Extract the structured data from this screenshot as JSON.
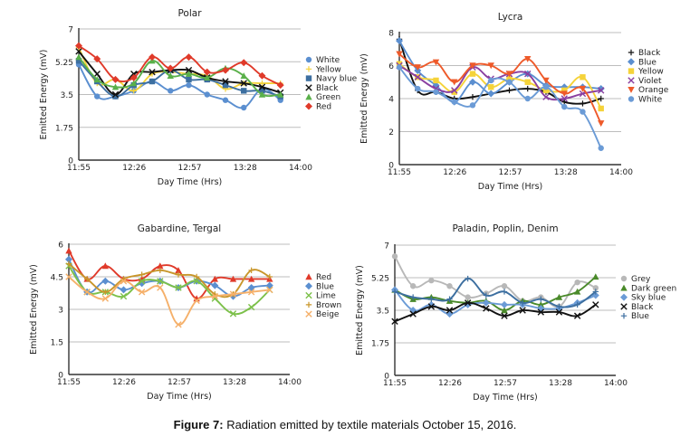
{
  "caption": {
    "label": "Figure 7:",
    "text": " Radiation emitted by textile materials October 15, 2016."
  },
  "chart_data": [
    {
      "type": "line",
      "title": "Polar",
      "xlabel": "Day Time (Hrs)",
      "ylabel": "Emitted Energy (mV)",
      "ylim": [
        0,
        7
      ],
      "yticks": [
        "0",
        "1.75",
        "3.5",
        "5.25",
        "7"
      ],
      "ytick_values": [
        0,
        1.75,
        3.5,
        5.25,
        7
      ],
      "xticks": [
        "11:55",
        "12:26",
        "12:57",
        "13:28",
        "14:00"
      ],
      "grid": true,
      "legend": "right",
      "x": [
        0,
        1,
        2,
        3,
        4,
        5,
        6,
        7,
        8,
        9,
        10,
        11
      ],
      "series": [
        {
          "name": "White",
          "color": "#5b8fd0",
          "marker": "circle",
          "values": [
            5.1,
            3.4,
            3.4,
            3.7,
            4.2,
            3.7,
            4.0,
            3.5,
            3.2,
            2.8,
            3.8,
            3.2
          ]
        },
        {
          "name": "Yellow",
          "color": "#f5d33a",
          "marker": "plus",
          "values": [
            6.0,
            4.1,
            4.3,
            3.7,
            4.6,
            4.7,
            4.6,
            4.5,
            3.8,
            4.1,
            4.1,
            4.1
          ]
        },
        {
          "name": "Navy blue",
          "color": "#3d6fa0",
          "marker": "square",
          "values": [
            5.3,
            4.2,
            3.4,
            4.0,
            4.2,
            4.8,
            4.3,
            4.3,
            4.0,
            3.7,
            3.7,
            3.4
          ]
        },
        {
          "name": "Black",
          "color": "#111111",
          "marker": "x",
          "values": [
            5.8,
            4.6,
            3.5,
            4.6,
            4.7,
            4.8,
            4.8,
            4.4,
            4.2,
            4.1,
            3.9,
            3.6
          ]
        },
        {
          "name": "Green",
          "color": "#5ab04a",
          "marker": "triangle",
          "values": [
            5.5,
            4.3,
            3.9,
            4.1,
            5.3,
            4.5,
            4.6,
            4.4,
            4.9,
            4.5,
            3.5,
            3.5
          ]
        },
        {
          "name": "Red",
          "color": "#e03a2a",
          "marker": "diamond",
          "values": [
            6.1,
            5.4,
            4.3,
            4.4,
            5.5,
            4.9,
            5.5,
            4.7,
            4.8,
            5.2,
            4.5,
            4.0
          ]
        }
      ]
    },
    {
      "type": "line",
      "title": "Lycra",
      "xlabel": "Day Time (Hrs)",
      "ylabel": "Emitted Energy (mV)",
      "ylim": [
        0,
        8
      ],
      "yticks": [
        "0",
        "2",
        "4",
        "6",
        "8"
      ],
      "ytick_values": [
        0,
        2,
        4,
        6,
        8
      ],
      "xticks": [
        "11:55",
        "12:26",
        "12:57",
        "13:28",
        "14:00"
      ],
      "grid": true,
      "legend": "right",
      "x": [
        0,
        1,
        2,
        3,
        4,
        5,
        6,
        7,
        8,
        9,
        10,
        11
      ],
      "series": [
        {
          "name": "Black",
          "color": "#111111",
          "marker": "plus",
          "values": [
            7.6,
            4.5,
            4.4,
            4.0,
            4.1,
            4.3,
            4.5,
            4.6,
            4.4,
            3.8,
            3.7,
            4.0
          ]
        },
        {
          "name": "Blue",
          "color": "#5b8fd0",
          "marker": "diamond",
          "values": [
            7.5,
            5.7,
            4.8,
            3.8,
            5.0,
            4.3,
            5.0,
            5.5,
            4.8,
            4.7,
            4.7,
            4.6
          ]
        },
        {
          "name": "Yellow",
          "color": "#f5d33a",
          "marker": "square",
          "values": [
            6.1,
            5.3,
            5.1,
            4.4,
            5.5,
            4.7,
            5.2,
            5.0,
            4.5,
            4.5,
            5.3,
            3.4
          ]
        },
        {
          "name": "Violet",
          "color": "#8a3fa0",
          "marker": "x",
          "values": [
            6.0,
            5.3,
            4.6,
            4.5,
            5.9,
            5.2,
            5.5,
            5.5,
            4.1,
            4.0,
            4.3,
            4.5
          ]
        },
        {
          "name": "Orange",
          "color": "#ee5a2a",
          "marker": "triangle-down",
          "values": [
            6.7,
            5.9,
            6.2,
            5.0,
            6.0,
            6.0,
            5.5,
            6.4,
            5.1,
            4.3,
            4.6,
            2.5
          ]
        },
        {
          "name": "White",
          "color": "#6b9bd6",
          "marker": "circle",
          "values": [
            5.9,
            4.6,
            4.4,
            3.8,
            3.6,
            5.1,
            5.0,
            4.0,
            4.7,
            3.5,
            3.2,
            1.0
          ]
        }
      ]
    },
    {
      "type": "line",
      "title": "Gabardine, Tergal",
      "xlabel": "Day Time (Hrs)",
      "ylabel": "Emitted Energy (mV)",
      "ylim": [
        0,
        6
      ],
      "yticks": [
        "0",
        "1.5",
        "3",
        "4.5",
        "6"
      ],
      "ytick_values": [
        0,
        1.5,
        3,
        4.5,
        6
      ],
      "xticks": [
        "11:55",
        "12:26",
        "12:57",
        "13:28",
        "14:00"
      ],
      "grid": true,
      "legend": "right",
      "x": [
        0,
        1,
        2,
        3,
        4,
        5,
        6,
        7,
        8,
        9,
        10,
        11
      ],
      "series": [
        {
          "name": "Red",
          "color": "#e03a2a",
          "marker": "triangle",
          "values": [
            5.7,
            4.4,
            5.0,
            4.4,
            4.4,
            5.0,
            4.8,
            3.5,
            4.4,
            4.4,
            4.4,
            4.4
          ]
        },
        {
          "name": "Blue",
          "color": "#5b8fd0",
          "marker": "diamond",
          "values": [
            5.3,
            3.8,
            4.3,
            3.9,
            4.2,
            4.3,
            4.0,
            4.3,
            4.1,
            3.6,
            4.0,
            4.1
          ]
        },
        {
          "name": "Lime",
          "color": "#7cc04a",
          "marker": "x",
          "values": [
            5.0,
            3.8,
            3.8,
            3.6,
            4.3,
            4.3,
            4.0,
            4.3,
            3.5,
            2.8,
            3.1,
            3.9
          ]
        },
        {
          "name": "Brown",
          "color": "#c8962a",
          "marker": "plus",
          "values": [
            5.1,
            4.4,
            3.8,
            4.4,
            4.6,
            4.8,
            4.6,
            4.5,
            3.7,
            3.7,
            4.8,
            4.5
          ]
        },
        {
          "name": "Beige",
          "color": "#f5b06a",
          "marker": "x",
          "values": [
            4.5,
            3.8,
            3.5,
            4.3,
            3.8,
            4.0,
            2.3,
            3.4,
            3.6,
            3.7,
            3.8,
            3.9
          ]
        }
      ]
    },
    {
      "type": "line",
      "title": "Paladin, Poplin, Denim",
      "xlabel": "Day Time (Hrs)",
      "ylabel": "Emitted Energy (mV)",
      "ylim": [
        0,
        7
      ],
      "yticks": [
        "0",
        "1.75",
        "3.5",
        "5.25",
        "7"
      ],
      "ytick_values": [
        0,
        1.75,
        3.5,
        5.25,
        7
      ],
      "xticks": [
        "11:55",
        "12:26",
        "12:57",
        "13:28",
        "14:00"
      ],
      "grid": true,
      "legend": "right",
      "x": [
        0,
        1,
        2,
        3,
        4,
        5,
        6,
        7,
        8,
        9,
        10,
        11
      ],
      "series": [
        {
          "name": "Grey",
          "color": "#b8b8b8",
          "marker": "circle",
          "values": [
            6.4,
            4.8,
            5.1,
            4.8,
            4.2,
            4.4,
            4.8,
            4.0,
            4.2,
            3.7,
            5.0,
            4.7
          ]
        },
        {
          "name": "Dark green",
          "color": "#4a8a2a",
          "marker": "triangle",
          "values": [
            4.6,
            4.1,
            4.2,
            4.0,
            3.9,
            4.0,
            3.5,
            4.0,
            3.8,
            4.2,
            4.5,
            5.3
          ]
        },
        {
          "name": "Sky blue",
          "color": "#6b9bd6",
          "marker": "diamond",
          "values": [
            4.6,
            3.5,
            3.8,
            3.3,
            3.8,
            3.9,
            3.8,
            3.8,
            3.6,
            3.6,
            3.9,
            4.3
          ]
        },
        {
          "name": "Black",
          "color": "#111111",
          "marker": "x",
          "values": [
            2.9,
            3.3,
            3.7,
            3.5,
            3.9,
            3.6,
            3.2,
            3.5,
            3.4,
            3.4,
            3.2,
            3.8
          ]
        },
        {
          "name": "Blue",
          "color": "#3d6fa0",
          "marker": "plus",
          "values": [
            4.5,
            4.2,
            4.1,
            4.1,
            5.2,
            4.3,
            4.5,
            3.9,
            4.1,
            3.7,
            3.8,
            4.5
          ]
        }
      ]
    }
  ]
}
